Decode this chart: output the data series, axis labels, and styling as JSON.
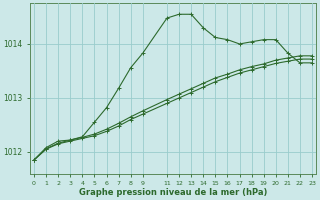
{
  "xlabel": "Graphe pression niveau de la mer (hPa)",
  "background_color": "#cce8e8",
  "grid_color": "#99cccc",
  "line_color": "#2d6a2d",
  "xlim": [
    -0.3,
    23.3
  ],
  "ylim": [
    1011.6,
    1014.75
  ],
  "yticks": [
    1012,
    1013,
    1014
  ],
  "xticks": [
    0,
    1,
    2,
    3,
    4,
    5,
    6,
    7,
    8,
    9,
    11,
    12,
    13,
    14,
    15,
    16,
    17,
    18,
    19,
    20,
    21,
    22,
    23
  ],
  "line1_x": [
    0,
    1,
    2,
    3,
    4,
    5,
    6,
    7,
    8,
    9,
    11,
    12,
    13,
    14,
    15,
    16,
    17,
    18,
    19,
    20,
    21,
    22,
    23
  ],
  "line1_y": [
    1011.85,
    1012.05,
    1012.15,
    1012.2,
    1012.25,
    1012.3,
    1012.38,
    1012.48,
    1012.6,
    1012.7,
    1012.9,
    1013.0,
    1013.1,
    1013.2,
    1013.3,
    1013.38,
    1013.46,
    1013.52,
    1013.58,
    1013.64,
    1013.68,
    1013.72,
    1013.72
  ],
  "line2_x": [
    0,
    1,
    2,
    3,
    4,
    5,
    6,
    7,
    8,
    9,
    11,
    12,
    13,
    14,
    15,
    16,
    17,
    18,
    19,
    20,
    21,
    22,
    23
  ],
  "line2_y": [
    1011.85,
    1012.06,
    1012.16,
    1012.22,
    1012.27,
    1012.33,
    1012.42,
    1012.53,
    1012.65,
    1012.76,
    1012.97,
    1013.07,
    1013.17,
    1013.27,
    1013.37,
    1013.44,
    1013.52,
    1013.58,
    1013.63,
    1013.7,
    1013.74,
    1013.78,
    1013.78
  ],
  "line3_x": [
    0,
    1,
    2,
    3,
    4,
    5,
    6,
    7,
    8,
    9,
    11,
    12,
    13,
    14,
    15,
    16,
    17,
    18,
    19,
    20,
    21,
    22,
    23
  ],
  "line3_y": [
    1011.85,
    1012.08,
    1012.2,
    1012.22,
    1012.28,
    1012.55,
    1012.82,
    1013.18,
    1013.56,
    1013.83,
    1014.48,
    1014.55,
    1014.55,
    1014.3,
    1014.12,
    1014.08,
    1014.0,
    1014.04,
    1014.08,
    1014.08,
    1013.83,
    1013.65,
    1013.65
  ]
}
